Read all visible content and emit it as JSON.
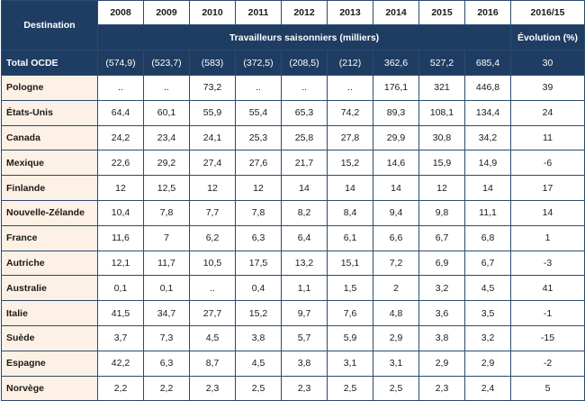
{
  "header": {
    "destination_label": "Destination",
    "years": [
      "2008",
      "2009",
      "2010",
      "2011",
      "2012",
      "2013",
      "2014",
      "2015",
      "2016"
    ],
    "evolution_year_label": "2016/15",
    "group_label": "Travailleurs saisonniers (milliers)",
    "evolution_label": "Évolution (%)"
  },
  "total": {
    "name": "Total OCDE",
    "values": [
      "(574,9)",
      "(523,7)",
      "(583)",
      "(372,5)",
      "(208,5)",
      "(212)",
      "362,6",
      "527,2",
      "685,4"
    ],
    "evolution": "30"
  },
  "rows": [
    {
      "name": "Pologne",
      "values": [
        "..",
        "..",
        "73,2",
        "..",
        "..",
        "..",
        "176,1",
        "321",
        "446,8"
      ],
      "evolution": "39"
    },
    {
      "name": "États-Unis",
      "values": [
        "64,4",
        "60,1",
        "55,9",
        "55,4",
        "65,3",
        "74,2",
        "89,3",
        "108,1",
        "134,4"
      ],
      "evolution": "24"
    },
    {
      "name": "Canada",
      "values": [
        "24,2",
        "23,4",
        "24,1",
        "25,3",
        "25,8",
        "27,8",
        "29,9",
        "30,8",
        "34,2"
      ],
      "evolution": "11"
    },
    {
      "name": "Mexique",
      "values": [
        "22,6",
        "29,2",
        "27,4",
        "27,6",
        "21,7",
        "15,2",
        "14,6",
        "15,9",
        "14,9"
      ],
      "evolution": "-6"
    },
    {
      "name": "Finlande",
      "values": [
        "12",
        "12,5",
        "12",
        "12",
        "14",
        "14",
        "14",
        "12",
        "14"
      ],
      "evolution": "17"
    },
    {
      "name": "Nouvelle-Zélande",
      "values": [
        "10,4",
        "7,8",
        "7,7",
        "7,8",
        "8,2",
        "8,4",
        "9,4",
        "9,8",
        "11,1"
      ],
      "evolution": "14"
    },
    {
      "name": "France",
      "values": [
        "11,6",
        "7",
        "6,2",
        "6,3",
        "6,4",
        "6,1",
        "6,6",
        "6,7",
        "6,8"
      ],
      "evolution": "1"
    },
    {
      "name": "Autriche",
      "values": [
        "12,1",
        "11,7",
        "10,5",
        "17,5",
        "13,2",
        "15,1",
        "7,2",
        "6,9",
        "6,7"
      ],
      "evolution": "-3"
    },
    {
      "name": "Australie",
      "values": [
        "0,1",
        "0,1",
        "..",
        "0,4",
        "1,1",
        "1,5",
        "2",
        "3,2",
        "4,5"
      ],
      "evolution": "41"
    },
    {
      "name": "Italie",
      "values": [
        "41,5",
        "34,7",
        "27,7",
        "15,2",
        "9,7",
        "7,6",
        "4,8",
        "3,6",
        "3,5"
      ],
      "evolution": "-1"
    },
    {
      "name": "Suède",
      "values": [
        "3,7",
        "7,3",
        "4,5",
        "3,8",
        "5,7",
        "5,9",
        "2,9",
        "3,8",
        "3,2"
      ],
      "evolution": "-15"
    },
    {
      "name": "Espagne",
      "values": [
        "42,2",
        "6,3",
        "8,7",
        "4,5",
        "3,8",
        "3,1",
        "3,1",
        "2,9",
        "2,9"
      ],
      "evolution": "-2"
    },
    {
      "name": "Norvège",
      "values": [
        "2,2",
        "2,2",
        "2,3",
        "2,5",
        "2,3",
        "2,5",
        "2,5",
        "2,3",
        "2,4"
      ],
      "evolution": "5"
    }
  ]
}
